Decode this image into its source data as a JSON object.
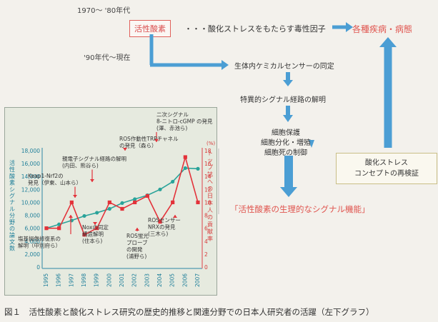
{
  "era_1970": "1970～ '80年代",
  "era_1990": "'90年代～現在",
  "ros_label": "活性酸素",
  "ros_desc": "・・・酸化ストレスをもたらす毒性因子",
  "disease": "各種疾病・病態",
  "flow": {
    "step1": "生体内ケミカルセンサーの同定",
    "step2": "特異的シグナル経路の解明",
    "step3": [
      "細胞保護",
      "細胞分化・増殖",
      "細胞死の制御"
    ],
    "physiological": "「活性酸素の生理的なシグナル機能」"
  },
  "concept": [
    "酸化ストレス",
    "コンセプトの再検証"
  ],
  "caption": "図１　活性酸素と酸化ストレス研究の歴史的推移と関連分野での日本人研究者の活躍（左下グラフ）",
  "colors": {
    "teal": "#2aa39a",
    "red": "#e3323a",
    "arrow": "#4b9ed4"
  },
  "chart_data": {
    "type": "line",
    "x": [
      1995,
      1996,
      1997,
      1998,
      1999,
      2000,
      2001,
      2002,
      2003,
      2004,
      2005,
      2006,
      2007
    ],
    "x_tick_labels": [
      "1995",
      "1996",
      "1997",
      "1998",
      "1999",
      "2000",
      "2001",
      "2002",
      "2003",
      "2004",
      "2005",
      "2006",
      "2007"
    ],
    "y_left_label": "活性酸素シグナル分野の論文数",
    "y_right_label": "トップ誌への日本人の貢献率",
    "y_right_unit": "(%)",
    "y_left_ticks": [
      "0",
      "2,000",
      "4,000",
      "6,000",
      "8,000",
      "10,000",
      "12,000",
      "14,000",
      "16,000",
      "18,000"
    ],
    "y_right_ticks": [
      "0",
      "2",
      "4",
      "6",
      "8",
      "10",
      "12",
      "14",
      "16",
      "18"
    ],
    "y_left_lim": [
      0,
      18000
    ],
    "y_right_lim": [
      0,
      18
    ],
    "series": [
      {
        "values": [
          6000,
          6600,
          7200,
          7900,
          8400,
          9000,
          9900,
          10500,
          11100,
          12000,
          13200,
          15300,
          15200
        ],
        "axis": "left",
        "color": "#2aa39a"
      },
      {
        "values": [
          6,
          6,
          10,
          5,
          6,
          10,
          9,
          10,
          11,
          7,
          10,
          17,
          10
        ],
        "axis": "right",
        "color": "#e3323a"
      }
    ],
    "annotations": [
      {
        "lines": [
          "二次シグナル",
          "8-ニトロ-cGMP の発見",
          "(澤、赤池ら)"
        ],
        "year": 2006
      },
      {
        "lines": [
          "ROS作動性TRPチャネル",
          "の発見（森ら）"
        ],
        "year": 2003
      },
      {
        "lines": [
          "親電子シグナル経路の解明",
          "(内田、熊谷ら)"
        ],
        "year": 2000
      },
      {
        "lines": [
          "Keap1-Nrf2の",
          "発見（伊東、山本ら）"
        ],
        "year": 1997
      },
      {
        "lines": [
          "Noxの同定",
          "構造解明",
          "(住本ら)"
        ],
        "year": 2000
      },
      {
        "lines": [
          "ROS蛍光",
          "プローブ",
          "の開発",
          "(浦野ら)"
        ],
        "year": 2003
      },
      {
        "lines": [
          "ROSセンサー",
          "NRXの発見",
          "(三木ら)"
        ],
        "year": 2006
      },
      {
        "lines": [
          "塩基損傷修復系の",
          "解明（中別府ら）"
        ],
        "year": 1997
      }
    ]
  }
}
